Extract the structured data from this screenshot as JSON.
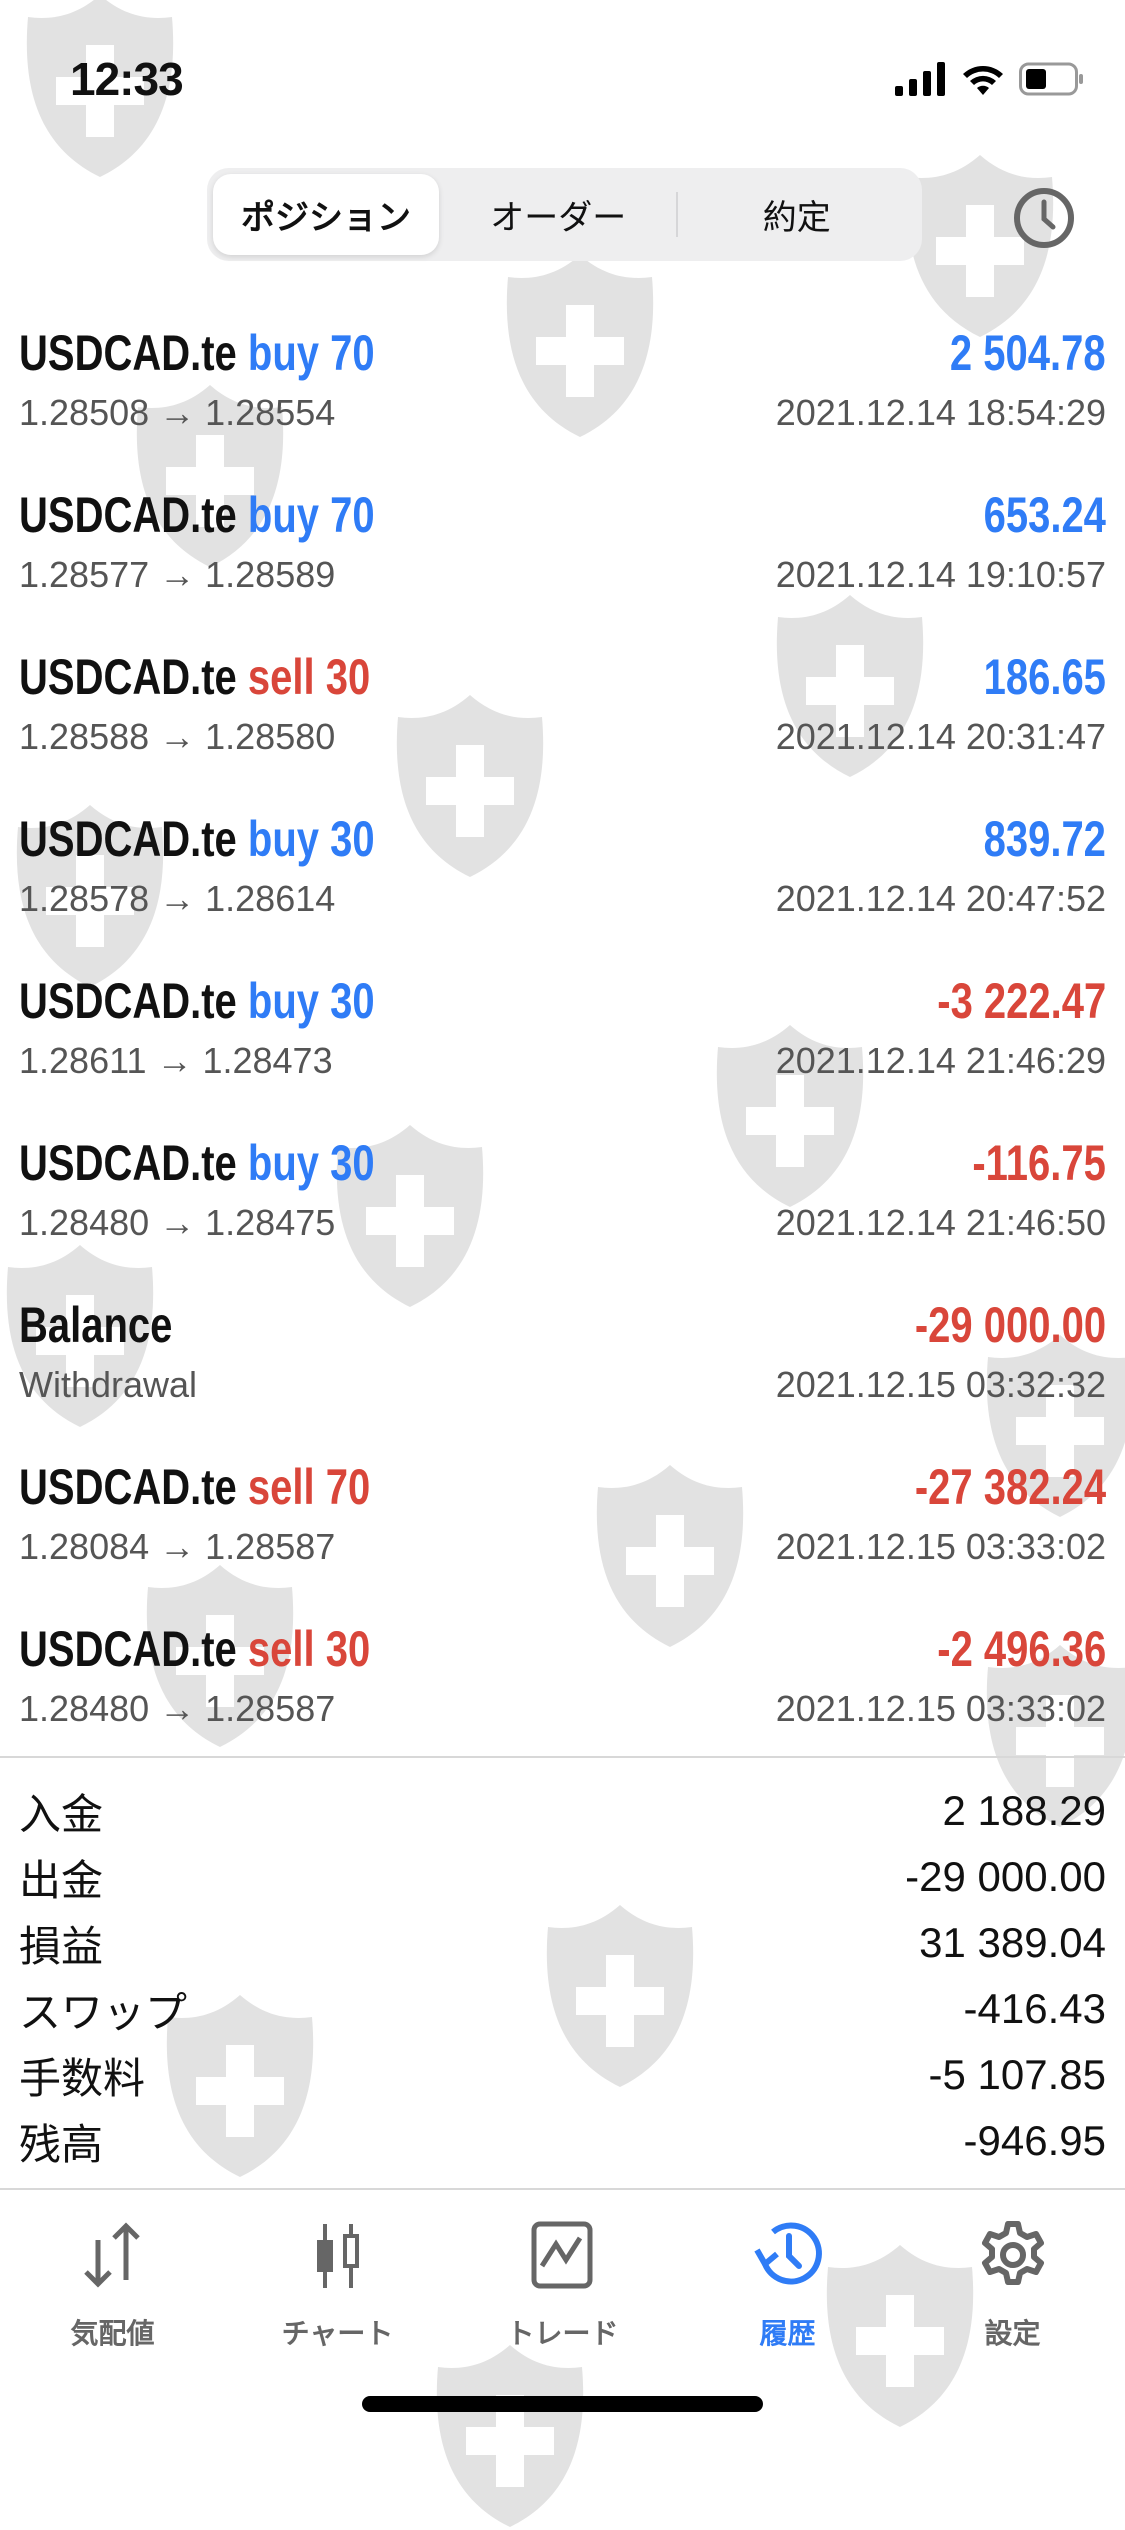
{
  "status_bar": {
    "time": "12:33"
  },
  "segments": [
    {
      "label": "ポジション",
      "active": true
    },
    {
      "label": "オーダー",
      "active": false
    },
    {
      "label": "約定",
      "active": false
    }
  ],
  "history_icon": "clock-icon",
  "colors": {
    "profit": "#2f7cf6",
    "loss": "#d9463a",
    "active_tab": "#2f7cf6"
  },
  "rows": [
    {
      "symbol": "USDCAD.te",
      "side": "buy 70",
      "prices": "1.28508 → 1.28554",
      "amount": "2 504.78",
      "datetime": "2021.12.14 18:54:29",
      "side_color": "blue",
      "amount_color": "blue"
    },
    {
      "symbol": "USDCAD.te",
      "side": "buy 70",
      "prices": "1.28577 → 1.28589",
      "amount": "653.24",
      "datetime": "2021.12.14 19:10:57",
      "side_color": "blue",
      "amount_color": "blue"
    },
    {
      "symbol": "USDCAD.te",
      "side": "sell 30",
      "prices": "1.28588 → 1.28580",
      "amount": "186.65",
      "datetime": "2021.12.14 20:31:47",
      "side_color": "red",
      "amount_color": "blue"
    },
    {
      "symbol": "USDCAD.te",
      "side": "buy 30",
      "prices": "1.28578 → 1.28614",
      "amount": "839.72",
      "datetime": "2021.12.14 20:47:52",
      "side_color": "blue",
      "amount_color": "blue"
    },
    {
      "symbol": "USDCAD.te",
      "side": "buy 30",
      "prices": "1.28611 → 1.28473",
      "amount": "-3 222.47",
      "datetime": "2021.12.14 21:46:29",
      "side_color": "blue",
      "amount_color": "red"
    },
    {
      "symbol": "USDCAD.te",
      "side": "buy 30",
      "prices": "1.28480 → 1.28475",
      "amount": "-116.75",
      "datetime": "2021.12.14 21:46:50",
      "side_color": "blue",
      "amount_color": "red"
    },
    {
      "symbol": "Balance",
      "side": "",
      "prices": "Withdrawal",
      "amount": "-29 000.00",
      "datetime": "2021.12.15 03:32:32",
      "side_color": "blue",
      "amount_color": "red"
    },
    {
      "symbol": "USDCAD.te",
      "side": "sell 70",
      "prices": "1.28084 → 1.28587",
      "amount": "-27 382.24",
      "datetime": "2021.12.15 03:33:02",
      "side_color": "red",
      "amount_color": "red"
    },
    {
      "symbol": "USDCAD.te",
      "side": "sell 30",
      "prices": "1.28480 → 1.28587",
      "amount": "-2 496.36",
      "datetime": "2021.12.15 03:33:02",
      "side_color": "red",
      "amount_color": "red"
    }
  ],
  "summary": [
    {
      "label": "入金",
      "value": "2 188.29"
    },
    {
      "label": "出金",
      "value": "-29 000.00"
    },
    {
      "label": "損益",
      "value": "31 389.04"
    },
    {
      "label": "スワップ",
      "value": "-416.43"
    },
    {
      "label": "手数料",
      "value": "-5 107.85"
    },
    {
      "label": "残高",
      "value": "-946.95"
    }
  ],
  "tabs": [
    {
      "label": "気配値",
      "icon": "quotes-arrows-icon",
      "active": false
    },
    {
      "label": "チャート",
      "icon": "candlestick-chart-icon",
      "active": false
    },
    {
      "label": "トレード",
      "icon": "trade-chart-icon",
      "active": false
    },
    {
      "label": "履歴",
      "icon": "history-clock-icon",
      "active": true
    },
    {
      "label": "設定",
      "icon": "gear-icon",
      "active": false
    }
  ]
}
